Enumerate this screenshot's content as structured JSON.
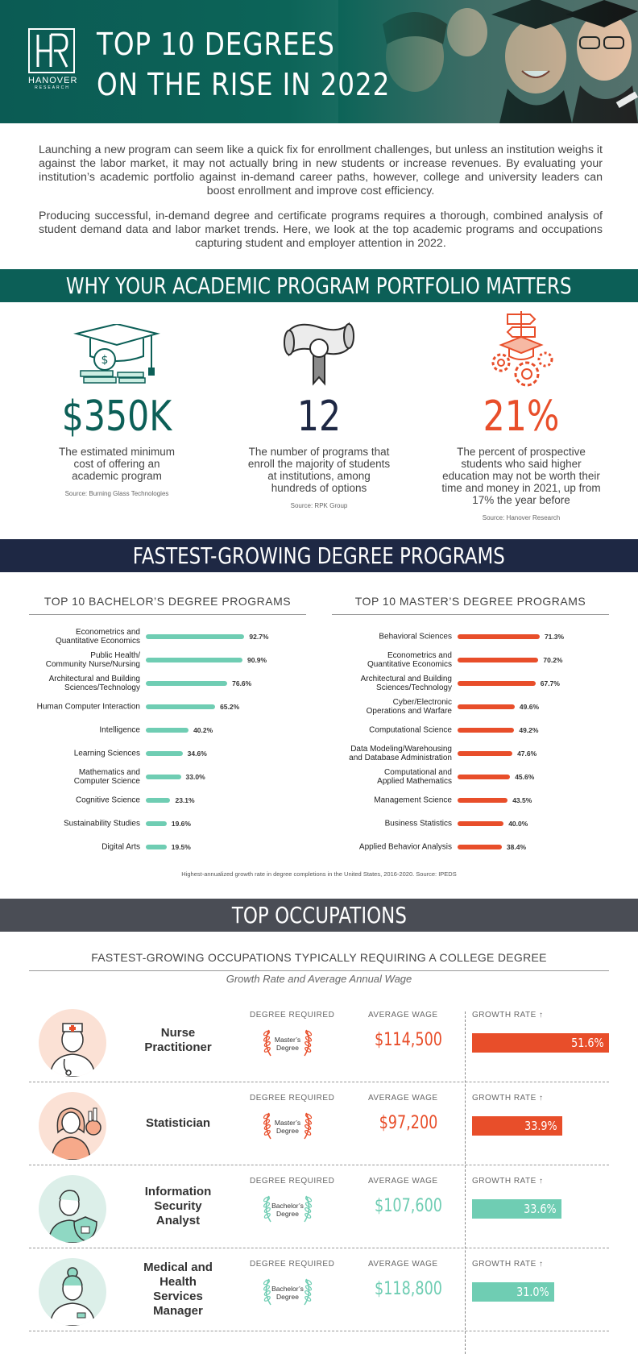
{
  "header": {
    "logo_letters": "HR",
    "logo_name": "HANOVER",
    "logo_sub": "RESEARCH",
    "title_line1": "TOP 10 DEGREES",
    "title_line2": "ON THE RISE IN 2022"
  },
  "intro": {
    "p1": "Launching a new program can seem like a quick fix for enrollment challenges, but unless an institution weighs it against the labor market, it may not actually bring in new students or increase revenues. By evaluating your institution’s academic portfolio against in-demand career paths, however, college and university leaders can boost enrollment and improve cost efficiency.",
    "p2": "Producing successful, in-demand degree and certificate programs requires a thorough, combined analysis of student demand data and labor market trends. Here, we look at the top academic programs and occupations capturing student and employer attention in 2022."
  },
  "section1": {
    "title": "WHY YOUR ACADEMIC PROGRAM PORTFOLIO MATTERS",
    "stats": [
      {
        "value": "$350K",
        "desc": "The estimated minimum cost of offering an academic program",
        "source": "Source: Burning Glass Technologies",
        "color": "#0c5f57",
        "icon": "graduation-cap-money-icon"
      },
      {
        "value": "12",
        "desc": "The number of programs that enroll the majority of students at institutions, among hundreds of options",
        "source": "Source: RPK Group",
        "color": "#1e2844",
        "icon": "diploma-icon"
      },
      {
        "value": "21%",
        "desc": "The percent of prospective students who said higher education may not be worth their time and money in 2021, up from 17% the year before",
        "source": "Source: Hanover Research",
        "color": "#e84e2a",
        "icon": "gears-signpost-icon"
      }
    ]
  },
  "section2": {
    "title": "FASTEST-GROWING DEGREE PROGRAMS",
    "footnote": "Highest-annualized growth rate in degree completions in the United States, 2016-2020. Source: IPEDS"
  },
  "chart_data": [
    {
      "type": "bar",
      "title": "TOP 10 BACHELOR’S DEGREE PROGRAMS",
      "color": "#6fcdb3",
      "categories": [
        "Econometrics and Quantitative Economics",
        "Public Health/ Community Nurse/Nursing",
        "Architectural and Building Sciences/Technology",
        "Human Computer Interaction",
        "Intelligence",
        "Learning Sciences",
        "Mathematics and Computer Science",
        "Cognitive Science",
        "Sustainability Studies",
        "Digital Arts"
      ],
      "values": [
        92.7,
        90.9,
        76.6,
        65.2,
        40.2,
        34.6,
        33.0,
        23.1,
        19.6,
        19.5
      ],
      "labels": [
        "92.7%",
        "90.9%",
        "76.6%",
        "65.2%",
        "40.2%",
        "34.6%",
        "33.0%",
        "23.1%",
        "19.6%",
        "19.5%"
      ]
    },
    {
      "type": "bar",
      "title": "TOP 10 MASTER’S DEGREE PROGRAMS",
      "color": "#e84e2a",
      "categories": [
        "Behavioral Sciences",
        "Econometrics and Quantitative Economics",
        "Architectural and Building Sciences/Technology",
        "Cyber/Electronic Operations and Warfare",
        "Computational Science",
        "Data Modeling/Warehousing and Database Administration",
        "Computational and Applied Mathematics",
        "Management Science",
        "Business Statistics",
        "Applied Behavior Analysis"
      ],
      "values": [
        71.3,
        70.2,
        67.7,
        49.6,
        49.2,
        47.6,
        45.6,
        43.5,
        40.0,
        38.4
      ],
      "labels": [
        "71.3%",
        "70.2%",
        "67.7%",
        "49.6%",
        "49.2%",
        "47.6%",
        "45.6%",
        "43.5%",
        "40.0%",
        "38.4%"
      ]
    }
  ],
  "bach_lines": [
    [
      "Econometrics and",
      "Quantitative Economics"
    ],
    [
      "Public Health/",
      "Community Nurse/Nursing"
    ],
    [
      "Architectural and Building",
      "Sciences/Technology"
    ],
    [
      "Human Computer Interaction"
    ],
    [
      "Intelligence"
    ],
    [
      "Learning Sciences"
    ],
    [
      "Mathematics and",
      "Computer Science"
    ],
    [
      "Cognitive Science"
    ],
    [
      "Sustainability Studies"
    ],
    [
      "Digital Arts"
    ]
  ],
  "mast_lines": [
    [
      "Behavioral Sciences"
    ],
    [
      "Econometrics and",
      "Quantitative Economics"
    ],
    [
      "Architectural and Building",
      "Sciences/Technology"
    ],
    [
      "Cyber/Electronic",
      "Operations and Warfare"
    ],
    [
      "Computational Science"
    ],
    [
      "Data Modeling/Warehousing",
      "and Database Administration"
    ],
    [
      "Computational and",
      "Applied Mathematics"
    ],
    [
      "Management Science"
    ],
    [
      "Business Statistics"
    ],
    [
      "Applied Behavior Analysis"
    ]
  ],
  "section3": {
    "title": "TOP OCCUPATIONS",
    "subtitle": "FASTEST-GROWING OCCUPATIONS TYPICALLY REQUIRING A COLLEGE DEGREE",
    "subtitle2": "Growth Rate and Average Annual Wage",
    "col_degree": "DEGREE REQUIRED",
    "col_wage": "AVERAGE WAGE",
    "col_growth": "GROWTH RATE",
    "occupations": [
      {
        "name": "Nurse Practitioner",
        "degree_1": "Master’s",
        "degree_2": "Degree",
        "wage": "$114,500",
        "growth": "51.6%",
        "growth_value": 51.6,
        "color": "#e84e2a",
        "avatar_bg": "#fbe1d5"
      },
      {
        "name": "Statistician",
        "degree_1": "Master’s",
        "degree_2": "Degree",
        "wage": "$97,200",
        "growth": "33.9%",
        "growth_value": 33.9,
        "color": "#e84e2a",
        "avatar_bg": "#fbe1d5"
      },
      {
        "name": "Information Security Analyst",
        "degree_1": "Bachelor’s",
        "degree_2": "Degree",
        "wage": "$107,600",
        "growth": "33.6%",
        "growth_value": 33.6,
        "color": "#6fcdb3",
        "avatar_bg": "#dcefe9"
      },
      {
        "name": "Medical and Health Services Manager",
        "degree_1": "Bachelor’s",
        "degree_2": "Degree",
        "wage": "$118,800",
        "growth": "31.0%",
        "growth_value": 31.0,
        "color": "#6fcdb3",
        "avatar_bg": "#dcefe9"
      }
    ]
  }
}
